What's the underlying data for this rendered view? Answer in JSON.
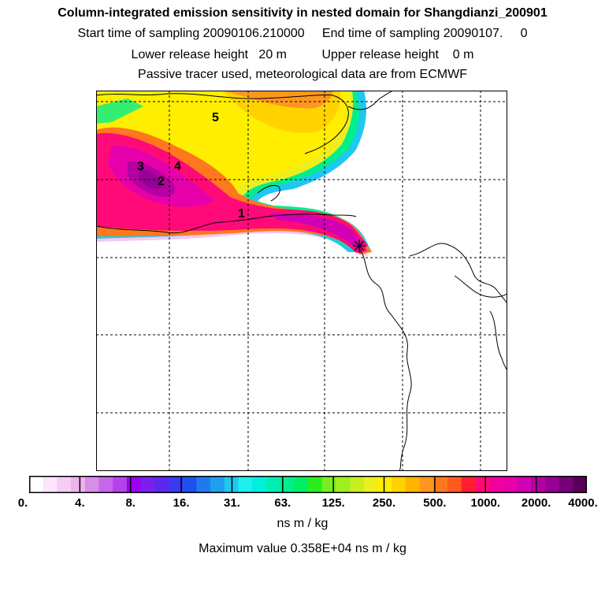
{
  "header": {
    "title": "Column-integrated emission sensitivity in nested domain for Shangdianzi_200901",
    "sampling": "Start time of sampling 20090106.210000     End time of sampling 20090107.     0",
    "release": "Lower release height   20 m          Upper release height    0 m",
    "tracer": "Passive tracer used, meteorological data are from ECMWF"
  },
  "map": {
    "labels": [
      "1",
      "2",
      "3",
      "4",
      "5"
    ],
    "station_marker": "star-icon"
  },
  "colorbar": {
    "colors": [
      "#ffffff",
      "#fbe6fb",
      "#f5ccf5",
      "#eeb2ee",
      "#d88ee8",
      "#c666e8",
      "#b342ee",
      "#9c00ee",
      "#7a1fee",
      "#5a28ee",
      "#3a3aee",
      "#1e50ee",
      "#1e7aee",
      "#1ea0ee",
      "#1ec8ee",
      "#1eeeee",
      "#00eedc",
      "#00eeb4",
      "#00ee8c",
      "#00ee64",
      "#28ee1e",
      "#78ee1e",
      "#a0ee1e",
      "#c8ee1e",
      "#eeee1e",
      "#ffee00",
      "#ffd200",
      "#ffb400",
      "#ff961e",
      "#ff781e",
      "#ff5a1e",
      "#ff1e32",
      "#ff0a78",
      "#f0009c",
      "#e600aa",
      "#d200b4",
      "#b400a0",
      "#960096",
      "#780078",
      "#5a005a"
    ],
    "tick_labels": [
      "0.",
      "4.",
      "8.",
      "16.",
      "31.",
      "63.",
      "125.",
      "250.",
      "500.",
      "1000.",
      "2000.",
      "4000."
    ],
    "unit": "ns m / kg"
  },
  "footer": {
    "max_value": "Maximum value  0.358E+04 ns m / kg"
  }
}
